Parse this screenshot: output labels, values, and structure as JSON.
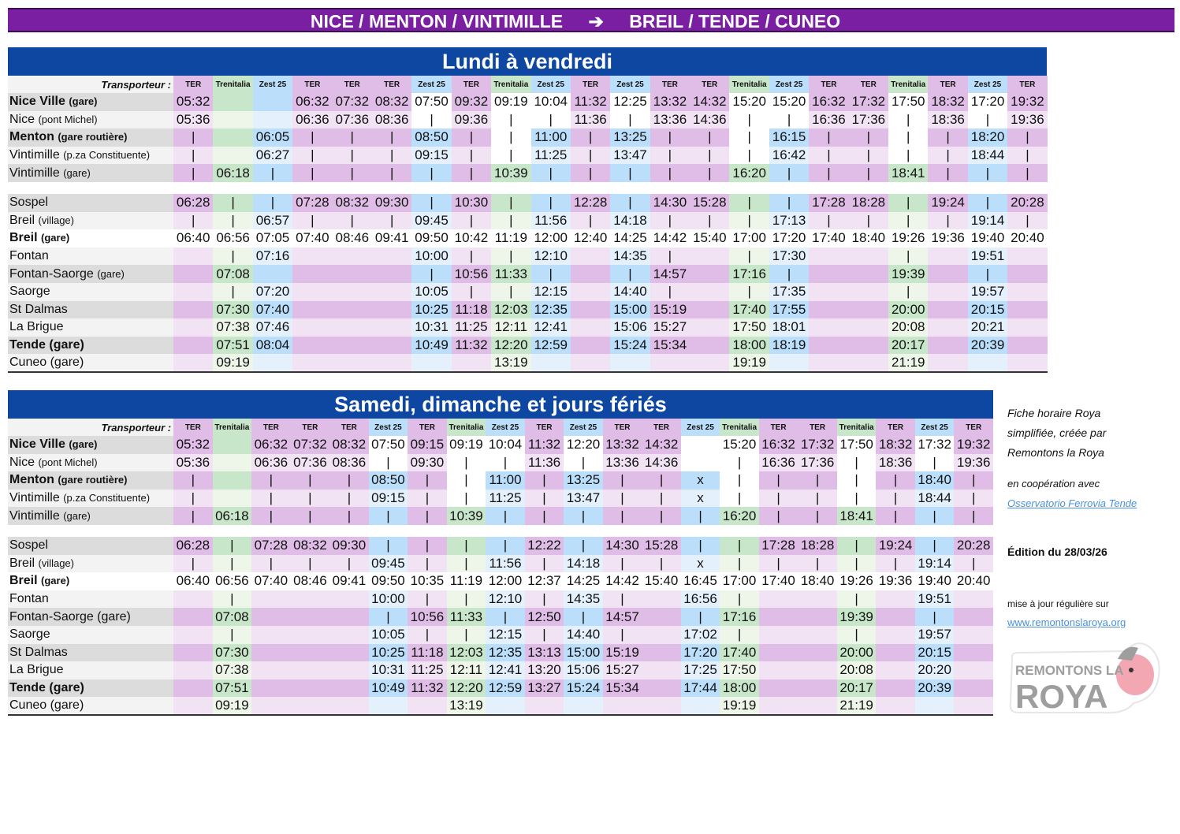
{
  "title": {
    "left": "NICE / MENTON / VINTIMILLE",
    "arrow": "➔",
    "right": "BREIL / TENDE / CUNEO"
  },
  "colors": {
    "title_bg": "#7b1fa2",
    "section_bg": "#0d47a1",
    "ter": "#dfbde6",
    "trenitalia": "#c8e6c9",
    "zest25": "#bbdefb"
  },
  "transporter_label": "Transporteur :",
  "weekday": {
    "heading": "Lundi à vendredi",
    "operators": [
      "TER",
      "Trenitalia",
      "Zest 25",
      "TER",
      "TER",
      "TER",
      "Zest 25",
      "TER",
      "Trenitalia",
      "Zest 25",
      "TER",
      "Zest 25",
      "TER",
      "TER",
      "Trenitalia",
      "Zest 25",
      "TER",
      "TER",
      "Trenitalia",
      "TER",
      "Zest 25",
      "TER"
    ],
    "rows": [
      {
        "station": "Nice Ville",
        "sub": "(gare)",
        "bold": true,
        "times": [
          "05:32",
          "",
          "",
          "06:32",
          "07:32",
          "08:32",
          "07:50",
          "09:32",
          "09:19",
          "10:04",
          "11:32",
          "12:25",
          "13:32",
          "14:32",
          "15:20",
          "15:20",
          "16:32",
          "17:32",
          "17:50",
          "18:32",
          "17:20",
          "19:32"
        ]
      },
      {
        "station": "Nice",
        "sub": "(pont Michel)",
        "bold": false,
        "times": [
          "05:36",
          "",
          "",
          "06:36",
          "07:36",
          "08:36",
          "|",
          "09:36",
          "|",
          "|",
          "11:36",
          "|",
          "13:36",
          "14:36",
          "|",
          "|",
          "16:36",
          "17:36",
          "|",
          "18:36",
          "|",
          "19:36"
        ]
      },
      {
        "station": "Menton",
        "sub": "(gare routière)",
        "bold": true,
        "times": [
          "|",
          "",
          "06:05",
          "|",
          "|",
          "|",
          "08:50",
          "|",
          "|",
          "11:00",
          "|",
          "13:25",
          "|",
          "|",
          "|",
          "16:15",
          "|",
          "|",
          "|",
          "|",
          "18:20",
          "|"
        ]
      },
      {
        "station": "Vintimille",
        "sub": "(p.za Constituente)",
        "bold": false,
        "times": [
          "|",
          "",
          "06:27",
          "|",
          "|",
          "|",
          "09:15",
          "|",
          "|",
          "11:25",
          "|",
          "13:47",
          "|",
          "|",
          "|",
          "16:42",
          "|",
          "|",
          "|",
          "|",
          "18:44",
          "|"
        ]
      },
      {
        "station": "Vintimille",
        "sub": "(gare)",
        "bold": false,
        "times": [
          "|",
          "06:18",
          "|",
          "|",
          "|",
          "|",
          "|",
          "|",
          "10:39",
          "|",
          "|",
          "|",
          "|",
          "|",
          "16:20",
          "|",
          "|",
          "|",
          "18:41",
          "|",
          "|",
          "|"
        ]
      },
      {
        "station": "Sospel",
        "sub": "",
        "bold": false,
        "times": [
          "06:28",
          "|",
          "|",
          "07:28",
          "08:32",
          "09:30",
          "|",
          "10:30",
          "|",
          "|",
          "12:28",
          "|",
          "14:30",
          "15:28",
          "|",
          "|",
          "17:28",
          "18:28",
          "|",
          "19:24",
          "|",
          "20:28"
        ]
      },
      {
        "station": "Breil",
        "sub": "(village)",
        "bold": false,
        "times": [
          "|",
          "|",
          "06:57",
          "|",
          "|",
          "|",
          "09:45",
          "|",
          "|",
          "11:56",
          "|",
          "14:18",
          "|",
          "|",
          "|",
          "17:13",
          "|",
          "|",
          "|",
          "|",
          "19:14",
          "|"
        ]
      },
      {
        "station": "Breil",
        "sub": "(gare)",
        "bold": true,
        "times": [
          "06:40",
          "06:56",
          "07:05",
          "07:40",
          "08:46",
          "09:41",
          "09:50",
          "10:42",
          "11:19",
          "12:00",
          "12:40",
          "14:25",
          "14:42",
          "15:40",
          "17:00",
          "17:20",
          "17:40",
          "18:40",
          "19:26",
          "19:36",
          "19:40",
          "20:40"
        ]
      },
      {
        "station": "Fontan",
        "sub": "",
        "bold": false,
        "times": [
          "",
          "|",
          "07:16",
          "",
          "",
          "",
          "10:00",
          "|",
          "|",
          "12:10",
          "",
          "14:35",
          "|",
          "",
          "|",
          "17:30",
          "",
          "",
          "|",
          "",
          "19:51",
          ""
        ]
      },
      {
        "station": "Fontan-Saorge",
        "sub": "(gare)",
        "bold": false,
        "times": [
          "",
          "07:08",
          "",
          "",
          "",
          "",
          "|",
          "10:56",
          "11:33",
          "|",
          "",
          "|",
          "14:57",
          "",
          "17:16",
          "|",
          "",
          "",
          "19:39",
          "",
          "|",
          ""
        ]
      },
      {
        "station": "Saorge",
        "sub": "",
        "bold": false,
        "times": [
          "",
          "|",
          "07:20",
          "",
          "",
          "",
          "10:05",
          "|",
          "|",
          "12:15",
          "",
          "14:40",
          "|",
          "",
          "|",
          "17:35",
          "",
          "",
          "|",
          "",
          "19:57",
          ""
        ]
      },
      {
        "station": "St Dalmas",
        "sub": "",
        "bold": false,
        "times": [
          "",
          "07:30",
          "07:40",
          "",
          "",
          "",
          "10:25",
          "11:18",
          "12:03",
          "12:35",
          "",
          "15:00",
          "15:19",
          "",
          "17:40",
          "17:55",
          "",
          "",
          "20:00",
          "",
          "20:15",
          ""
        ]
      },
      {
        "station": "La Brigue",
        "sub": "",
        "bold": false,
        "times": [
          "",
          "07:38",
          "07:46",
          "",
          "",
          "",
          "10:31",
          "11:25",
          "12:11",
          "12:41",
          "",
          "15:06",
          "15:27",
          "",
          "17:50",
          "18:01",
          "",
          "",
          "20:08",
          "",
          "20:21",
          ""
        ]
      },
      {
        "station": "Tende (gare)",
        "sub": "",
        "bold": true,
        "times": [
          "",
          "07:51",
          "08:04",
          "",
          "",
          "",
          "10:49",
          "11:32",
          "12:20",
          "12:59",
          "",
          "15:24",
          "15:34",
          "",
          "18:00",
          "18:19",
          "",
          "",
          "20:17",
          "",
          "20:39",
          ""
        ]
      },
      {
        "station": "Cuneo (gare)",
        "sub": "",
        "bold": false,
        "times": [
          "",
          "09:19",
          "",
          "",
          "",
          "",
          "",
          "",
          "13:19",
          "",
          "",
          "",
          "",
          "",
          "19:19",
          "",
          "",
          "",
          "21:19",
          "",
          "",
          ""
        ]
      }
    ]
  },
  "weekend": {
    "heading": "Samedi, dimanche et jours fériés",
    "operators": [
      "TER",
      "Trenitalia",
      "TER",
      "TER",
      "TER",
      "Zest 25",
      "TER",
      "Trenitalia",
      "Zest 25",
      "TER",
      "Zest 25",
      "TER",
      "TER",
      "Zest 25",
      "Trenitalia",
      "TER",
      "TER",
      "Trenitalia",
      "TER",
      "Zest 25",
      "TER"
    ],
    "rows": [
      {
        "station": "Nice Ville",
        "sub": "(gare)",
        "bold": true,
        "times": [
          "05:32",
          "",
          "06:32",
          "07:32",
          "08:32",
          "07:50",
          "09:15",
          "09:19",
          "10:04",
          "11:32",
          "12:20",
          "13:32",
          "14:32",
          "",
          "15:20",
          "16:32",
          "17:32",
          "17:50",
          "18:32",
          "17:32",
          "19:32"
        ]
      },
      {
        "station": "Nice",
        "sub": "(pont Michel)",
        "bold": false,
        "times": [
          "05:36",
          "",
          "06:36",
          "07:36",
          "08:36",
          "|",
          "09:30",
          "|",
          "|",
          "11:36",
          "|",
          "13:36",
          "14:36",
          "",
          "|",
          "16:36",
          "17:36",
          "|",
          "18:36",
          "|",
          "19:36"
        ]
      },
      {
        "station": "Menton",
        "sub": "(gare routière)",
        "bold": true,
        "times": [
          "|",
          "",
          "|",
          "|",
          "|",
          "08:50",
          "|",
          "|",
          "11:00",
          "|",
          "13:25",
          "|",
          "|",
          "x",
          "|",
          "|",
          "|",
          "|",
          "|",
          "18:40",
          "|"
        ]
      },
      {
        "station": "Vintimille",
        "sub": "(p.za Constituente)",
        "bold": false,
        "times": [
          "|",
          "",
          "|",
          "|",
          "|",
          "09:15",
          "|",
          "|",
          "11:25",
          "|",
          "13:47",
          "|",
          "|",
          "x",
          "|",
          "|",
          "|",
          "|",
          "|",
          "18:44",
          "|"
        ]
      },
      {
        "station": "Vintimille",
        "sub": "(gare)",
        "bold": false,
        "times": [
          "|",
          "06:18",
          "|",
          "|",
          "|",
          "|",
          "|",
          "10:39",
          "|",
          "|",
          "|",
          "|",
          "|",
          "|",
          "16:20",
          "|",
          "|",
          "18:41",
          "|",
          "|",
          "|"
        ]
      },
      {
        "station": "Sospel",
        "sub": "",
        "bold": false,
        "times": [
          "06:28",
          "|",
          "07:28",
          "08:32",
          "09:30",
          "|",
          "|",
          "|",
          "|",
          "12:22",
          "|",
          "14:30",
          "15:28",
          "|",
          "|",
          "17:28",
          "18:28",
          "|",
          "19:24",
          "|",
          "20:28"
        ]
      },
      {
        "station": "Breil",
        "sub": "(village)",
        "bold": false,
        "times": [
          "|",
          "|",
          "|",
          "|",
          "|",
          "09:45",
          "|",
          "|",
          "11:56",
          "|",
          "14:18",
          "|",
          "|",
          "x",
          "|",
          "|",
          "|",
          "|",
          "|",
          "19:14",
          "|"
        ]
      },
      {
        "station": "Breil",
        "sub": "(gare)",
        "bold": true,
        "times": [
          "06:40",
          "06:56",
          "07:40",
          "08:46",
          "09:41",
          "09:50",
          "10:35",
          "11:19",
          "12:00",
          "12:37",
          "14:25",
          "14:42",
          "15:40",
          "16:45",
          "17:00",
          "17:40",
          "18:40",
          "19:26",
          "19:36",
          "19:40",
          "20:40"
        ]
      },
      {
        "station": "Fontan",
        "sub": "",
        "bold": false,
        "times": [
          "",
          "|",
          "",
          "",
          "",
          "10:00",
          "|",
          "|",
          "12:10",
          "|",
          "14:35",
          "|",
          "",
          "16:56",
          "|",
          "",
          "",
          "|",
          "",
          "19:51",
          ""
        ]
      },
      {
        "station": "Fontan-Saorge (gare)",
        "sub": "",
        "bold": false,
        "times": [
          "",
          "07:08",
          "",
          "",
          "",
          "|",
          "10:56",
          "11:33",
          "|",
          "12:50",
          "|",
          "14:57",
          "",
          "|",
          "17:16",
          "",
          "",
          "19:39",
          "",
          "|",
          ""
        ]
      },
      {
        "station": "Saorge",
        "sub": "",
        "bold": false,
        "times": [
          "",
          "|",
          "",
          "",
          "",
          "10:05",
          "|",
          "|",
          "12:15",
          "|",
          "14:40",
          "|",
          "",
          "17:02",
          "|",
          "",
          "",
          "|",
          "",
          "19:57",
          ""
        ]
      },
      {
        "station": "St Dalmas",
        "sub": "",
        "bold": false,
        "times": [
          "",
          "07:30",
          "",
          "",
          "",
          "10:25",
          "11:18",
          "12:03",
          "12:35",
          "13:13",
          "15:00",
          "15:19",
          "",
          "17:20",
          "17:40",
          "",
          "",
          "20:00",
          "",
          "20:15",
          ""
        ]
      },
      {
        "station": "La Brigue",
        "sub": "",
        "bold": false,
        "times": [
          "",
          "07:38",
          "",
          "",
          "",
          "10:31",
          "11:25",
          "12:11",
          "12:41",
          "13:20",
          "15:06",
          "15:27",
          "",
          "17:25",
          "17:50",
          "",
          "",
          "20:08",
          "",
          "20:20",
          ""
        ]
      },
      {
        "station": "Tende (gare)",
        "sub": "",
        "bold": true,
        "times": [
          "",
          "07:51",
          "",
          "",
          "",
          "10:49",
          "11:32",
          "12:20",
          "12:59",
          "13:27",
          "15:24",
          "15:34",
          "",
          "17:44",
          "18:00",
          "",
          "",
          "20:17",
          "",
          "20:39",
          ""
        ]
      },
      {
        "station": "Cuneo (gare)",
        "sub": "",
        "bold": false,
        "times": [
          "",
          "09:19",
          "",
          "",
          "",
          "",
          "",
          "13:19",
          "",
          "",
          "",
          "",
          "",
          "",
          "19:19",
          "",
          "",
          "21:19",
          "",
          "",
          ""
        ]
      }
    ]
  },
  "side": {
    "credit_line1": "Fiche horaire Roya",
    "credit_line2": "simplifiée, créée par",
    "credit_line3": "Remontons la Roya",
    "coop": "en coopération avec",
    "coop_link": "Osservatorio Ferrovia Tende",
    "edition": "Édition du 28/03/26",
    "update": "mise à jour régulière sur",
    "website": "www.remontonslaroya.org",
    "logo_top": "REMONTONS LA",
    "logo_bottom": "ROYA"
  }
}
